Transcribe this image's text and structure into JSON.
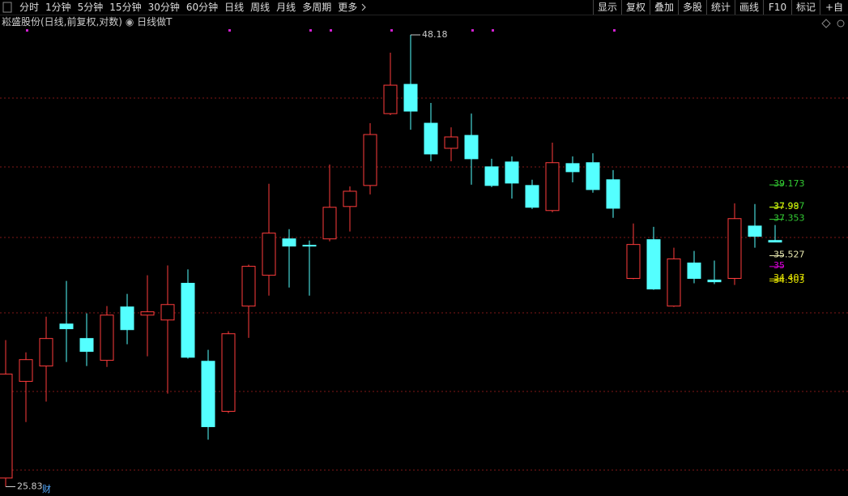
{
  "toolbar": {
    "periods": [
      "分时",
      "1分钟",
      "5分钟",
      "15分钟",
      "30分钟",
      "60分钟",
      "日线",
      "周线",
      "月线",
      "多周期",
      "更多"
    ],
    "tools": [
      "显示",
      "复权",
      "叠加",
      "多股",
      "统计",
      "画线",
      "F10",
      "标记",
      "+自"
    ]
  },
  "header": {
    "title": "崧盛股份(日线,前复权,对数)",
    "indicator": "日线做T"
  },
  "chart_data": {
    "type": "candlestick",
    "log": true,
    "ylim": [
      25.5,
      48.56
    ],
    "up_color": "#ff3c3c",
    "down_color": "#54ffff",
    "open": [
      26.14,
      29.87,
      30.51,
      32.33,
      31.69,
      30.75,
      33.1,
      32.73,
      32.51,
      34.2,
      30.71,
      28.66,
      33.14,
      34.58,
      36.36,
      36.04,
      36.36,
      38.02,
      39.14,
      43.22,
      45.0,
      42.65,
      41.2,
      41.94,
      40.16,
      40.43,
      39.14,
      37.81,
      40.34,
      40.39,
      39.45,
      34.43,
      36.32,
      33.14,
      35.17,
      34.35,
      34.43,
      37.01,
      36.28
    ],
    "high": [
      31.62,
      31.09,
      32.66,
      34.31,
      32.81,
      33.14,
      33.7,
      34.58,
      35.05,
      34.86,
      31.2,
      32.01,
      35.09,
      39.23,
      36.85,
      36.28,
      40.29,
      39.09,
      42.65,
      47.01,
      48.18,
      43.86,
      42.41,
      43.22,
      40.61,
      40.74,
      39.45,
      41.52,
      40.74,
      40.92,
      39.98,
      37.14,
      36.97,
      35.92,
      35.76,
      35.29,
      38.19,
      38.15,
      37.06
    ],
    "low": [
      25.83,
      28.24,
      29.05,
      30.68,
      30.51,
      30.47,
      31.44,
      30.92,
      29.37,
      30.82,
      27.56,
      28.59,
      31.72,
      33.62,
      34.0,
      33.62,
      36.24,
      36.73,
      38.66,
      43.13,
      42.27,
      40.47,
      40.47,
      39.18,
      39.05,
      38.44,
      37.89,
      37.72,
      39.31,
      38.75,
      37.43,
      34.39,
      33.89,
      33.1,
      34.2,
      34.16,
      34.12,
      35.92,
      36.2
    ],
    "close": [
      30.17,
      30.78,
      31.69,
      32.12,
      31.13,
      32.73,
      32.08,
      32.88,
      33.21,
      30.88,
      28.06,
      31.9,
      35.01,
      36.65,
      36.0,
      36.0,
      37.98,
      38.83,
      41.99,
      44.95,
      43.37,
      40.88,
      41.85,
      40.61,
      39.14,
      39.27,
      37.98,
      40.39,
      39.89,
      38.92,
      37.93,
      36.08,
      33.93,
      35.37,
      34.43,
      34.27,
      37.39,
      36.49,
      36.2
    ],
    "levels": [
      {
        "value": 39.173,
        "color": "#33cc33"
      },
      {
        "value": 37.997,
        "color": "#33cc33"
      },
      {
        "value": 37.98,
        "color": "#e0e000"
      },
      {
        "value": 37.353,
        "color": "#33cc33"
      },
      {
        "value": 35.527,
        "color": "#e8e8b0"
      },
      {
        "value": 35,
        "color": "#e000e0"
      },
      {
        "value": 34.407,
        "color": "#e0e000"
      },
      {
        "value": 34.303,
        "color": "#e0e000"
      }
    ],
    "marker": "财"
  }
}
